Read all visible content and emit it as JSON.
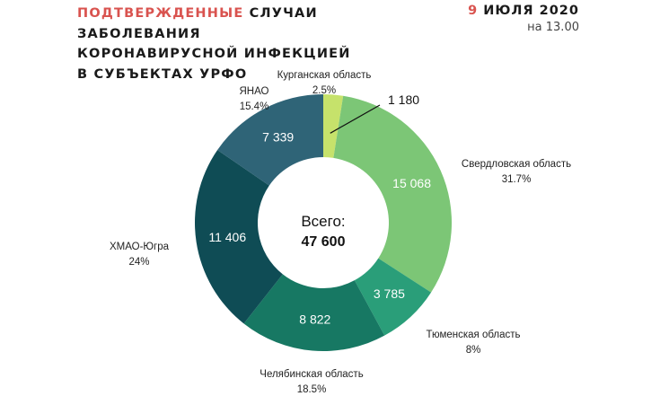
{
  "header": {
    "title_accent": "ПОДТВЕРЖДЕННЫЕ",
    "title_rest": " СЛУЧАИ",
    "title_line2": "ЗАБОЛЕВАНИЯ",
    "title_line3": "КОРОНАВИРУСНОЙ ИНФЕКЦИЕЙ",
    "title_line4": "В СУБЪЕКТАХ УРФО",
    "date_day": "9",
    "date_rest": " ИЮЛЯ 2020",
    "time": "на 13.00"
  },
  "colors": {
    "accent": "#d9534f",
    "kurgan": "#c6e26b",
    "sverdlovsk": "#7cc676",
    "tyumen": "#2a9e79",
    "chelyabinsk": "#177863",
    "khmao": "#0f4c55",
    "yanao": "#2f6477"
  },
  "chart_data": {
    "type": "pie",
    "donut": true,
    "center_label": "Всего:",
    "center_value": "47 600",
    "slices": [
      {
        "name": "Курганская область",
        "value": 1180,
        "value_label": "1 180",
        "percent": "2.5%"
      },
      {
        "name": "Свердловская область",
        "value": 15068,
        "value_label": "15 068",
        "percent": "31.7%"
      },
      {
        "name": "Тюменская область",
        "value": 3785,
        "value_label": "3 785",
        "percent": "8%"
      },
      {
        "name": "Челябинская область",
        "value": 8822,
        "value_label": "8 822",
        "percent": "18.5%"
      },
      {
        "name": "ХМАО-Югра",
        "value": 11406,
        "value_label": "11 406",
        "percent": "24%"
      },
      {
        "name": "ЯНАО",
        "value": 7339,
        "value_label": "7 339",
        "percent": "15.4%"
      }
    ]
  }
}
